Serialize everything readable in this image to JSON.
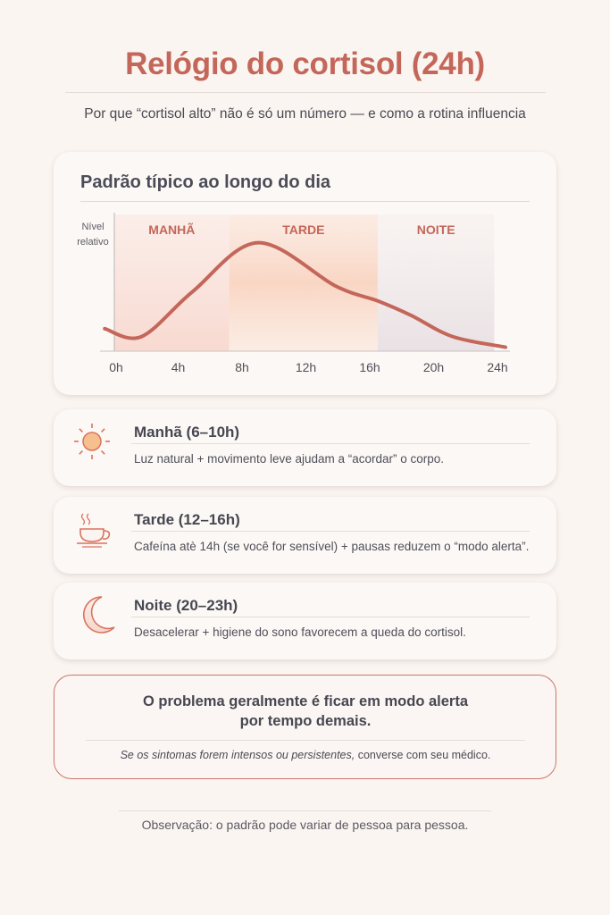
{
  "header": {
    "title": "Relógio do cortisol (24h)",
    "subtitle": "Por que “cortisol alto” não é só um número — e como a rotina influencia"
  },
  "chart_card": {
    "title": "Padrão típico ao longo do dia"
  },
  "chart_data": {
    "type": "line",
    "title": "Padrão típico ao longo do dia",
    "ylabel": "Nível relativo",
    "xlabel": "",
    "x_tick_labels": [
      "0h",
      "4h",
      "8h",
      "12h",
      "16h",
      "20h",
      "24h"
    ],
    "xlim": [
      0,
      24
    ],
    "ylim": [
      0,
      1
    ],
    "grid": false,
    "bands": [
      {
        "label": "MANHÃ",
        "from": 0,
        "to": 7.2,
        "color": "#f8ddd5"
      },
      {
        "label": "TARDE",
        "from": 7.2,
        "to": 16.5,
        "color": "#f9d9c8"
      },
      {
        "label": "NOITE",
        "from": 16.5,
        "to": 23.8,
        "color": "#ece4e6"
      }
    ],
    "series": [
      {
        "color": "#c4675a",
        "x": [
          -0.6,
          1.7,
          4.9,
          9.0,
          13.9,
          16.5,
          18.6,
          21.2,
          24.5
        ],
        "y": [
          0.17,
          0.11,
          0.45,
          0.82,
          0.49,
          0.38,
          0.27,
          0.11,
          0.03
        ]
      }
    ]
  },
  "tips": [
    {
      "icon": "sun-icon",
      "title": "Manhã (6–10h)",
      "text": "Luz natural + movimento leve ajudam a “acordar” o corpo."
    },
    {
      "icon": "coffee-cup-icon",
      "title": "Tarde (12–16h)",
      "text": "Cafeína atè 14h (se você for sensível) + pausas reduzem o “modo alerta”."
    },
    {
      "icon": "moon-icon",
      "title": "Noite (20–23h)",
      "text": "Desacelerar + higiene do sono favorecem a queda do cortisol."
    }
  ],
  "alert": {
    "title_line1": "O problema geralmente é ficar em modo alerta",
    "title_line2": "por tempo demais.",
    "note_italic": "Se os sintomas forem intensos ou persistentes,",
    "note_regular": " converse com seu médico."
  },
  "footer": {
    "note": "Observação: o padrão pode variar de pessoa para pessoa."
  },
  "colors": {
    "accent": "#c4675a",
    "background": "#faf5f1",
    "text": "#474752"
  }
}
